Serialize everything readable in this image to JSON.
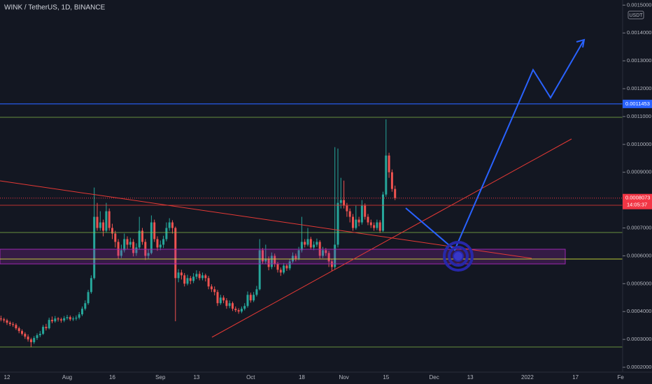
{
  "chart_data": {
    "type": "candlestick",
    "title": "WINK / TetherUS, 1D, BINANCE",
    "currency": "USDT",
    "up_color": "#26a69a",
    "down_color": "#ef5350",
    "categories": [
      null,
      null,
      "12",
      null,
      null,
      null,
      null,
      null,
      null,
      null,
      null,
      null,
      null,
      null,
      null,
      null,
      null,
      null,
      null,
      null,
      null,
      null,
      "Aug",
      null,
      null,
      null,
      null,
      null,
      null,
      null,
      null,
      null,
      null,
      null,
      null,
      null,
      null,
      "16",
      null,
      null,
      null,
      null,
      null,
      null,
      null,
      null,
      null,
      null,
      null,
      null,
      null,
      null,
      null,
      "Sep",
      null,
      null,
      null,
      null,
      null,
      null,
      null,
      null,
      null,
      null,
      null,
      "13",
      null,
      null,
      null,
      null,
      null,
      null,
      null,
      null,
      null,
      null,
      null,
      null,
      null,
      null,
      null,
      null,
      null,
      "Oct",
      null,
      null,
      null,
      null,
      null,
      null,
      null,
      null,
      null,
      null,
      null,
      null,
      null,
      null,
      null,
      null,
      "18",
      null,
      null,
      null,
      null,
      null,
      null,
      null,
      null,
      null,
      null,
      null,
      null,
      null,
      "Nov",
      null,
      null,
      null,
      null,
      null,
      null,
      null,
      null,
      null,
      null,
      null,
      null,
      null,
      "15",
      null,
      null,
      null,
      null,
      null,
      null,
      null,
      null,
      null,
      null,
      null,
      null,
      null,
      null,
      null,
      "Dec",
      null,
      null,
      null,
      null,
      null,
      null,
      null,
      null,
      null,
      null,
      null,
      "13",
      null,
      null,
      null,
      null,
      null,
      null,
      null,
      null,
      null,
      null,
      null,
      null,
      null,
      null,
      null,
      null,
      null,
      null,
      "2022",
      null,
      null,
      null,
      null,
      null,
      null,
      null,
      null,
      null,
      null,
      null,
      null,
      null,
      null,
      null,
      "17",
      null,
      null,
      null,
      null,
      null,
      null,
      null,
      null,
      null,
      null,
      null,
      null,
      null,
      null,
      "Fe"
    ],
    "open": [
      0.000375,
      0.000372,
      0.000368,
      0.00036,
      0.000355,
      0.000352,
      0.00034,
      0.00033,
      0.00032,
      0.00031,
      0.0003,
      0.00029,
      0.000305,
      0.000315,
      0.00032,
      0.000345,
      0.00034,
      0.00037,
      0.000365,
      0.000375,
      0.000372,
      0.000368,
      0.000376,
      0.00038,
      0.000372,
      0.000375,
      0.000378,
      0.00039,
      0.00041,
      0.00043,
      0.00047,
      0.00052,
      0.00074,
      0.0007,
      0.00072,
      0.00069,
      0.00076,
      0.0007,
      0.00068,
      0.00065,
      0.0006,
      0.00062,
      0.00066,
      0.00064,
      0.00065,
      0.00061,
      0.00063,
      0.00069,
      0.00065,
      0.0006,
      0.00061,
      0.00072,
      0.00066,
      0.00063,
      0.00064,
      0.00066,
      0.0007,
      0.00072,
      0.0007,
      0.00052,
      0.00054,
      0.00053,
      0.0005,
      0.00052,
      0.00051,
      0.000525,
      0.000535,
      0.00052,
      0.00053,
      0.00052,
      0.00049,
      0.00048,
      0.00047,
      0.00043,
      0.00045,
      0.00044,
      0.00042,
      0.00043,
      0.00041,
      0.000405,
      0.0004,
      0.00041,
      0.00042,
      0.00046,
      0.00044,
      0.00046,
      0.00048,
      0.00062,
      0.00058,
      0.00059,
      0.00056,
      0.0006,
      0.00057,
      0.00055,
      0.00054,
      0.000565,
      0.000555,
      0.00058,
      0.0006,
      0.00059,
      0.00062,
      0.00065,
      0.00064,
      0.00066,
      0.00063,
      0.00064,
      0.00065,
      0.0006,
      0.00062,
      0.00061,
      0.00058,
      0.00056,
      0.00064,
      0.00079,
      0.0008,
      0.00078,
      0.00076,
      0.00074,
      0.0007,
      0.00073,
      0.00072,
      0.00078,
      0.00074,
      0.00072,
      0.00071,
      0.0007,
      0.00072,
      0.00069,
      0.00082,
      0.00096,
      0.0009,
      0.00084,
      null,
      null,
      null,
      null,
      null,
      null,
      null,
      null,
      null,
      null,
      null,
      null,
      null,
      null,
      null,
      null,
      null,
      null,
      null,
      null,
      null,
      null,
      null,
      null,
      null,
      null,
      null,
      null,
      null,
      null,
      null,
      null,
      null,
      null,
      null,
      null,
      null,
      null,
      null,
      null,
      null,
      null,
      null,
      null,
      null,
      null,
      null,
      null,
      null,
      null,
      null,
      null,
      null,
      null,
      null,
      null,
      null,
      null,
      null,
      null,
      null,
      null,
      null,
      null,
      null,
      null,
      null,
      null,
      null,
      null,
      null,
      null,
      null,
      null,
      null
    ],
    "high": [
      0.000385,
      0.000378,
      0.000374,
      0.000366,
      0.000362,
      0.000358,
      0.000346,
      0.000336,
      0.000326,
      0.000318,
      0.000306,
      0.000312,
      0.000322,
      0.00033,
      0.000352,
      0.000356,
      0.000378,
      0.000382,
      0.000384,
      0.00038,
      0.000378,
      0.000384,
      0.000388,
      0.000386,
      0.000382,
      0.000386,
      0.000398,
      0.000418,
      0.00044,
      0.000478,
      0.00053,
      0.000845,
      0.00079,
      0.00076,
      0.00073,
      0.00079,
      0.00077,
      0.000715,
      0.00069,
      0.00066,
      0.00064,
      0.00068,
      0.00067,
      0.000665,
      0.00066,
      0.000645,
      0.00074,
      0.0007,
      0.00066,
      0.000625,
      0.000745,
      0.00073,
      0.00067,
      0.000655,
      0.000672,
      0.00072,
      0.000735,
      0.000728,
      0.000705,
      0.000552,
      0.00055,
      0.000538,
      0.000532,
      0.000528,
      0.000538,
      0.000548,
      0.000545,
      0.00054,
      0.000536,
      0.000528,
      0.000498,
      0.00049,
      0.000478,
      0.00046,
      0.000458,
      0.000448,
      0.00044,
      0.000436,
      0.000418,
      0.000412,
      0.000418,
      0.00043,
      0.000472,
      0.000468,
      0.00047,
      0.000492,
      0.00066,
      0.000628,
      0.00064,
      0.000598,
      0.000612,
      0.000608,
      0.000578,
      0.000558,
      0.000574,
      0.000572,
      0.00059,
      0.000612,
      0.000608,
      0.000632,
      0.00074,
      0.00066,
      0.0007,
      0.000668,
      0.000652,
      0.000662,
      0.000656,
      0.000632,
      0.000628,
      0.000618,
      0.00059,
      0.00099,
      0.000985,
      0.00088,
      0.00087,
      0.00079,
      0.00077,
      0.00075,
      0.00078,
      0.00074,
      0.0008,
      0.000788,
      0.00075,
      0.00073,
      0.00072,
      0.00073,
      0.000728,
      0.00083,
      0.00109,
      0.00097,
      0.00091,
      0.000852,
      null,
      null,
      null,
      null,
      null,
      null,
      null,
      null,
      null,
      null,
      null,
      null,
      null,
      null,
      null,
      null,
      null,
      null,
      null,
      null,
      null,
      null,
      null,
      null,
      null,
      null,
      null,
      null,
      null,
      null,
      null,
      null,
      null,
      null,
      null,
      null,
      null,
      null,
      null,
      null,
      null,
      null,
      null,
      null,
      null,
      null,
      null,
      null,
      null,
      null,
      null,
      null,
      null,
      null,
      null,
      null,
      null,
      null,
      null,
      null,
      null,
      null,
      null,
      null,
      null,
      null,
      null,
      null,
      null,
      null,
      null,
      null,
      null,
      null,
      null
    ],
    "low": [
      0.000365,
      0.00036,
      0.000352,
      0.000348,
      0.000345,
      0.000334,
      0.000322,
      0.000314,
      0.000302,
      0.000292,
      0.000272,
      0.000284,
      0.000298,
      0.000308,
      0.000316,
      0.000332,
      0.000336,
      0.000358,
      0.00036,
      0.000364,
      0.00036,
      0.000362,
      0.00037,
      0.000366,
      0.000366,
      0.000368,
      0.000372,
      0.000384,
      0.000404,
      0.000424,
      0.000464,
      0.000515,
      0.00069,
      0.00069,
      0.00067,
      0.000684,
      0.00069,
      0.00066,
      0.00063,
      0.00059,
      0.000592,
      0.000612,
      0.000625,
      0.00063,
      0.000598,
      0.0006,
      0.000622,
      0.00064,
      0.000585,
      0.00059,
      0.000605,
      0.00065,
      0.000618,
      0.00062,
      0.000628,
      0.000652,
      0.00069,
      0.00068,
      0.000365,
      0.000505,
      0.000515,
      0.00049,
      0.000494,
      0.000498,
      0.000502,
      0.000516,
      0.000512,
      0.000512,
      0.000508,
      0.00048,
      0.00047,
      0.000458,
      0.00042,
      0.000424,
      0.00043,
      0.00041,
      0.000412,
      0.000402,
      0.000398,
      0.000392,
      0.000394,
      0.000404,
      0.000414,
      0.000432,
      0.000434,
      0.000454,
      0.000476,
      0.00057,
      0.000572,
      0.000548,
      0.000552,
      0.00056,
      0.00054,
      0.000528,
      0.000534,
      0.000546,
      0.000548,
      0.000574,
      0.00058,
      0.000584,
      0.000612,
      0.00063,
      0.000634,
      0.000622,
      0.00062,
      0.000632,
      0.00059,
      0.000592,
      0.0006,
      0.00056,
      0.000545,
      0.000552,
      0.00063,
      0.00077,
      0.00077,
      0.00074,
      0.00072,
      0.00069,
      0.000694,
      0.000706,
      0.000712,
      0.00073,
      0.00071,
      0.0007,
      0.00069,
      0.000692,
      0.000682,
      0.000686,
      0.000812,
      0.00088,
      0.00083,
      0.0008,
      null,
      null,
      null,
      null,
      null,
      null,
      null,
      null,
      null,
      null,
      null,
      null,
      null,
      null,
      null,
      null,
      null,
      null,
      null,
      null,
      null,
      null,
      null,
      null,
      null,
      null,
      null,
      null,
      null,
      null,
      null,
      null,
      null,
      null,
      null,
      null,
      null,
      null,
      null,
      null,
      null,
      null,
      null,
      null,
      null,
      null,
      null,
      null,
      null,
      null,
      null,
      null,
      null,
      null,
      null,
      null,
      null,
      null,
      null,
      null,
      null,
      null,
      null,
      null,
      null,
      null,
      null,
      null,
      null,
      null,
      null,
      null,
      null,
      null,
      null
    ],
    "close": [
      0.000372,
      0.000368,
      0.00036,
      0.000355,
      0.000352,
      0.00034,
      0.00033,
      0.00032,
      0.00031,
      0.0003,
      0.00029,
      0.000305,
      0.000315,
      0.00032,
      0.000345,
      0.00034,
      0.00037,
      0.000365,
      0.000375,
      0.000372,
      0.000368,
      0.000376,
      0.00038,
      0.000372,
      0.000375,
      0.000378,
      0.00039,
      0.00041,
      0.00043,
      0.00047,
      0.00052,
      0.00074,
      0.0007,
      0.00072,
      0.00069,
      0.00076,
      0.0007,
      0.00068,
      0.00065,
      0.0006,
      0.00062,
      0.00066,
      0.00064,
      0.00065,
      0.00061,
      0.00063,
      0.00069,
      0.00065,
      0.0006,
      0.00061,
      0.00072,
      0.00066,
      0.00063,
      0.00064,
      0.00066,
      0.0007,
      0.00072,
      0.0007,
      0.00052,
      0.00054,
      0.00053,
      0.0005,
      0.00052,
      0.00051,
      0.000525,
      0.000535,
      0.00052,
      0.00053,
      0.00052,
      0.00049,
      0.00048,
      0.00047,
      0.00043,
      0.00045,
      0.00044,
      0.00042,
      0.00043,
      0.00041,
      0.000405,
      0.0004,
      0.00041,
      0.00042,
      0.00046,
      0.00044,
      0.00046,
      0.00048,
      0.00062,
      0.00058,
      0.00059,
      0.00056,
      0.0006,
      0.00057,
      0.00055,
      0.00054,
      0.000565,
      0.000555,
      0.00058,
      0.0006,
      0.00059,
      0.00062,
      0.00065,
      0.00064,
      0.00066,
      0.00063,
      0.00064,
      0.00065,
      0.0006,
      0.00062,
      0.00061,
      0.00058,
      0.00056,
      0.00064,
      0.00079,
      0.0008,
      0.00078,
      0.00076,
      0.00074,
      0.0007,
      0.00073,
      0.00072,
      0.00078,
      0.00074,
      0.00072,
      0.00071,
      0.0007,
      0.00072,
      0.00069,
      0.00082,
      0.00096,
      0.0009,
      0.00084,
      0.000807,
      null,
      null,
      null,
      null,
      null,
      null,
      null,
      null,
      null,
      null,
      null,
      null,
      null,
      null,
      null,
      null,
      null,
      null,
      null,
      null,
      null,
      null,
      null,
      null,
      null,
      null,
      null,
      null,
      null,
      null,
      null,
      null,
      null,
      null,
      null,
      null,
      null,
      null,
      null,
      null,
      null,
      null,
      null,
      null,
      null,
      null,
      null,
      null,
      null,
      null,
      null,
      null,
      null,
      null,
      null,
      null,
      null,
      null,
      null,
      null,
      null,
      null,
      null,
      null,
      null,
      null,
      null,
      null,
      null,
      null,
      null,
      null,
      null,
      null,
      null
    ],
    "ylim": [
      0.0001825,
      0.0015183
    ],
    "yticks": [
      {
        "value": 0.0015,
        "label": "0.0015000"
      },
      {
        "value": 0.0014,
        "label": "0.0014000"
      },
      {
        "value": 0.0013,
        "label": "0.0013000"
      },
      {
        "value": 0.0012,
        "label": "0.0012000"
      },
      {
        "value": 0.0011,
        "label": "0.0011000"
      },
      {
        "value": 0.001,
        "label": "0.0010000"
      },
      {
        "value": 0.0009,
        "label": "0.0009000"
      },
      {
        "value": 0.0007,
        "label": "0.0007000"
      },
      {
        "value": 0.0006,
        "label": "0.0006000"
      },
      {
        "value": 0.0005,
        "label": "0.0005000"
      },
      {
        "value": 0.0004,
        "label": "0.0004000"
      },
      {
        "value": 0.0003,
        "label": "0.0003000"
      },
      {
        "value": 0.0002,
        "label": "0.0002000"
      }
    ],
    "alert_line": {
      "value": 0.0011453,
      "color": "#2962ff"
    },
    "last_price": {
      "value": 0.0008073,
      "countdown": "14:05:37",
      "color": "#f23645"
    }
  }
}
